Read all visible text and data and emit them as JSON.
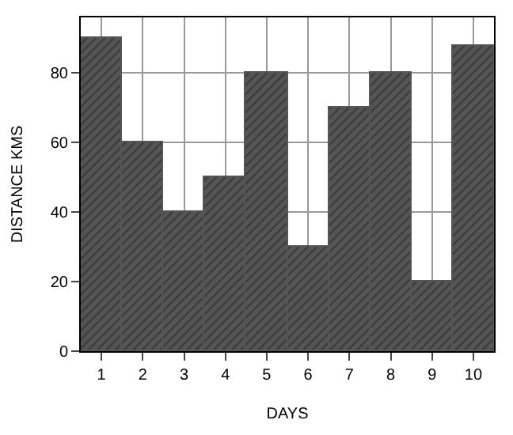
{
  "chart_data": {
    "type": "bar",
    "xlabel": "DAYS",
    "ylabel": "DISTANCE KMS",
    "categories": [
      "1",
      "2",
      "3",
      "4",
      "5",
      "6",
      "7",
      "8",
      "9",
      "10"
    ],
    "values": [
      90,
      60,
      40,
      50,
      80,
      30,
      70,
      80,
      20,
      88
    ],
    "color": "#555555",
    "ylim": [
      0,
      96
    ],
    "yticks": [
      0,
      20,
      40,
      60,
      80
    ],
    "grid": true
  }
}
